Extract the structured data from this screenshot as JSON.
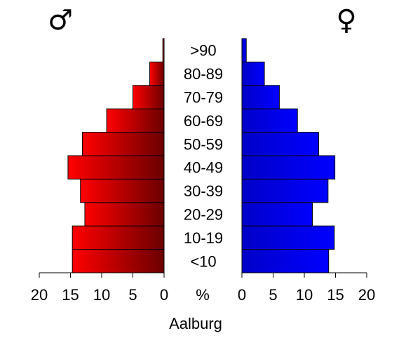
{
  "chart_data": {
    "type": "bar",
    "orientation": "horizontal-pyramid",
    "categories": [
      "<10",
      "10-19",
      "20-29",
      "30-39",
      "40-49",
      "50-59",
      "60-69",
      "70-79",
      "80-89",
      ">90"
    ],
    "series": [
      {
        "symbol": "♂",
        "side": "left",
        "color_light": "#ff0000",
        "color_dark": "#6b0000",
        "values": [
          14.7,
          14.7,
          12.7,
          13.4,
          15.4,
          13.1,
          9.2,
          5.0,
          2.3,
          0.2
        ]
      },
      {
        "symbol": "♀",
        "side": "right",
        "color_light": "#0000c8",
        "color_dark": "#0000ff",
        "values": [
          13.9,
          14.8,
          11.3,
          13.8,
          14.9,
          12.3,
          8.9,
          6.0,
          3.6,
          0.7
        ]
      }
    ],
    "xlim": [
      0,
      20
    ],
    "left_ticks": [
      "20",
      "15",
      "10",
      "5",
      "0"
    ],
    "right_ticks": [
      "0",
      "5",
      "10",
      "15",
      "20"
    ],
    "center_label": "%",
    "xlabel": "Aalburg"
  }
}
